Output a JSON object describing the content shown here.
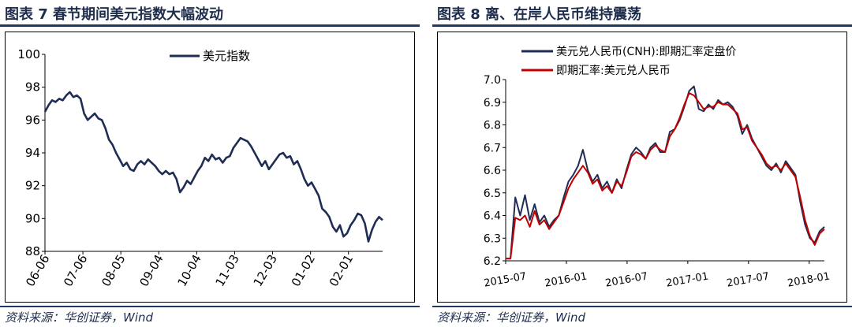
{
  "left": {
    "figure_title": "图表 7   春节期间美元指数大幅波动",
    "source": "资料来源：华创证券，Wind",
    "chart_data": {
      "type": "line",
      "title": "",
      "xlabel": "",
      "ylabel": "",
      "ylim": [
        88,
        100
      ],
      "y_ticks": [
        "100",
        "98",
        "96",
        "94",
        "92",
        "90",
        "88"
      ],
      "x_ticks": [
        "06-06",
        "07-06",
        "08-05",
        "09-04",
        "10-04",
        "11-03",
        "12-03",
        "01-02",
        "02-01"
      ],
      "legend": "top-center",
      "series": [
        {
          "name": "美元指数",
          "color": "#1f2d55",
          "values": [
            96.5,
            96.9,
            97.2,
            97.1,
            97.3,
            97.2,
            97.5,
            97.7,
            97.4,
            97.5,
            97.3,
            96.4,
            96.0,
            96.2,
            96.4,
            96.1,
            96.0,
            95.5,
            94.8,
            94.5,
            94.0,
            93.6,
            93.2,
            93.4,
            93.0,
            92.9,
            93.3,
            93.5,
            93.3,
            93.6,
            93.4,
            93.2,
            92.9,
            92.7,
            92.9,
            92.7,
            92.8,
            92.4,
            91.6,
            91.9,
            92.3,
            92.1,
            92.5,
            92.9,
            93.2,
            93.7,
            93.5,
            93.9,
            93.6,
            93.7,
            93.4,
            93.7,
            93.8,
            94.3,
            94.6,
            94.9,
            94.8,
            94.7,
            94.4,
            94.0,
            93.6,
            93.2,
            93.5,
            93.0,
            93.3,
            93.6,
            93.9,
            94.0,
            93.7,
            93.8,
            93.3,
            93.5,
            93.0,
            92.4,
            92.0,
            92.2,
            91.8,
            91.4,
            90.6,
            90.4,
            90.1,
            89.5,
            89.2,
            89.6,
            88.9,
            89.1,
            89.6,
            89.9,
            90.3,
            90.2,
            89.7,
            88.6,
            89.3,
            89.8,
            90.1,
            89.9
          ]
        }
      ]
    }
  },
  "right": {
    "figure_title": "图表 8   离、在岸人民币维持震荡",
    "source": "资料来源：华创证券，Wind",
    "chart_data": {
      "type": "line",
      "title": "",
      "xlabel": "",
      "ylabel": "",
      "ylim": [
        6.2,
        7.0
      ],
      "y_ticks": [
        "7.0",
        "6.9",
        "6.8",
        "6.7",
        "6.6",
        "6.5",
        "6.4",
        "6.3",
        "6.2"
      ],
      "x_ticks": [
        "2015-07",
        "2016-01",
        "2016-07",
        "2017-01",
        "2017-07",
        "2018-01"
      ],
      "legend": "top-left",
      "series": [
        {
          "name": "美元兑人民币(CNH):即期汇率定盘价",
          "color": "#1f2d55",
          "values": [
            6.21,
            6.21,
            6.48,
            6.4,
            6.49,
            6.38,
            6.45,
            6.37,
            6.4,
            6.35,
            6.38,
            6.4,
            6.48,
            6.55,
            6.58,
            6.62,
            6.69,
            6.6,
            6.55,
            6.58,
            6.52,
            6.55,
            6.5,
            6.56,
            6.52,
            6.6,
            6.67,
            6.7,
            6.68,
            6.65,
            6.7,
            6.72,
            6.68,
            6.68,
            6.77,
            6.78,
            6.82,
            6.88,
            6.95,
            6.97,
            6.87,
            6.86,
            6.89,
            6.87,
            6.91,
            6.89,
            6.9,
            6.88,
            6.84,
            6.76,
            6.8,
            6.74,
            6.7,
            6.66,
            6.62,
            6.6,
            6.63,
            6.59,
            6.64,
            6.61,
            6.58,
            6.46,
            6.36,
            6.3,
            6.28,
            6.33,
            6.35
          ]
        },
        {
          "name": "即期汇率:美元兑人民币",
          "color": "#c00000",
          "values": [
            6.21,
            6.21,
            6.39,
            6.38,
            6.4,
            6.35,
            6.42,
            6.36,
            6.38,
            6.34,
            6.37,
            6.4,
            6.46,
            6.52,
            6.56,
            6.59,
            6.62,
            6.59,
            6.54,
            6.56,
            6.51,
            6.53,
            6.5,
            6.55,
            6.53,
            6.59,
            6.66,
            6.68,
            6.67,
            6.65,
            6.69,
            6.71,
            6.69,
            6.68,
            6.75,
            6.78,
            6.83,
            6.89,
            6.94,
            6.93,
            6.9,
            6.87,
            6.88,
            6.88,
            6.9,
            6.89,
            6.89,
            6.87,
            6.85,
            6.78,
            6.79,
            6.73,
            6.7,
            6.67,
            6.63,
            6.61,
            6.62,
            6.6,
            6.63,
            6.6,
            6.57,
            6.48,
            6.38,
            6.31,
            6.27,
            6.32,
            6.34
          ]
        }
      ]
    }
  }
}
